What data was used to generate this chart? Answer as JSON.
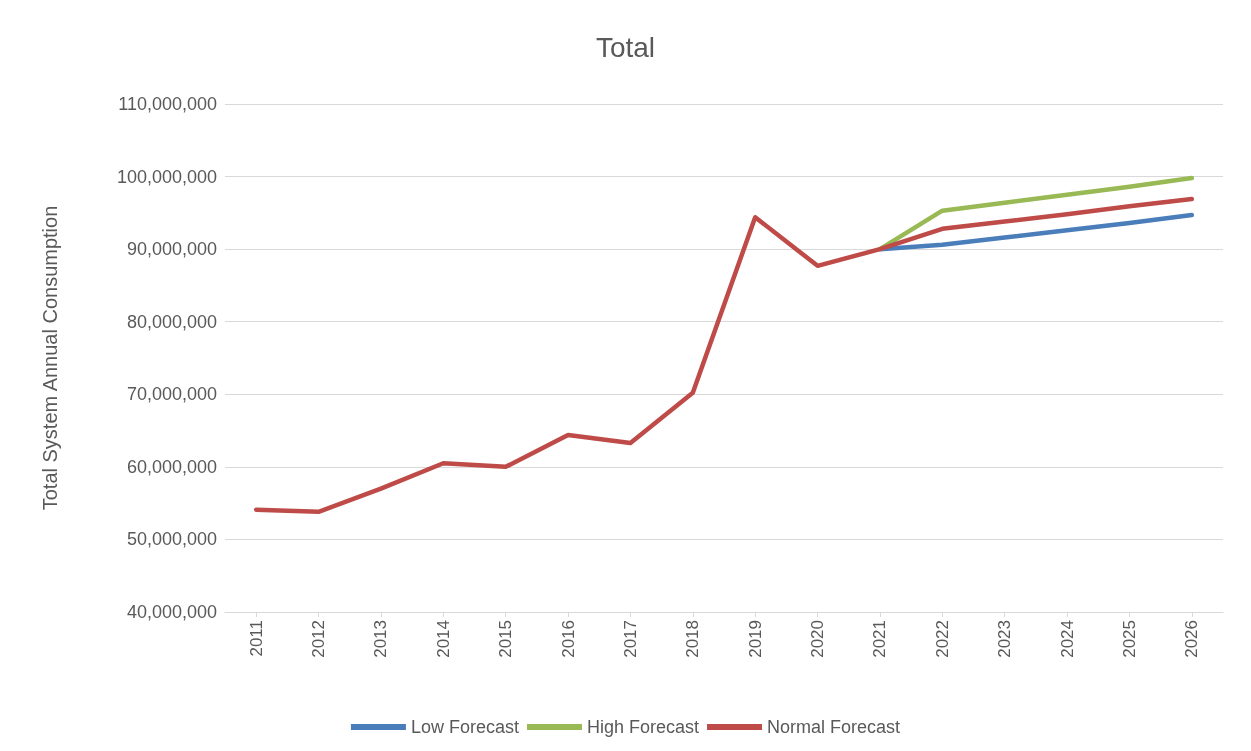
{
  "chart_data": {
    "type": "line",
    "title": "Total",
    "ylabel": "Total System Annual Consumption",
    "categories": [
      "2011",
      "2012",
      "2013",
      "2014",
      "2015",
      "2016",
      "2017",
      "2018",
      "2019",
      "2020",
      "2021",
      "2022",
      "2023",
      "2024",
      "2025",
      "2026"
    ],
    "series": [
      {
        "name": "Low Forecast",
        "color": "#4a7ebb",
        "values": [
          null,
          null,
          null,
          null,
          null,
          null,
          null,
          null,
          null,
          null,
          90000000,
          90600000,
          91600000,
          92600000,
          93600000,
          94700000
        ]
      },
      {
        "name": "High Forecast",
        "color": "#98b954",
        "values": [
          null,
          null,
          null,
          null,
          null,
          null,
          null,
          null,
          null,
          null,
          90000000,
          95300000,
          96400000,
          97500000,
          98600000,
          99800000
        ]
      },
      {
        "name": "Normal Forecast",
        "color": "#be4b48",
        "values": [
          54100000,
          53800000,
          57000000,
          60500000,
          60000000,
          64400000,
          63300000,
          70200000,
          94400000,
          87700000,
          90000000,
          92800000,
          93800000,
          94800000,
          95900000,
          96900000
        ]
      }
    ],
    "ylim": [
      40000000,
      110000000
    ],
    "yticks": [
      {
        "value": 40000000,
        "label": "40,000,000"
      },
      {
        "value": 50000000,
        "label": "50,000,000"
      },
      {
        "value": 60000000,
        "label": "60,000,000"
      },
      {
        "value": 70000000,
        "label": "70,000,000"
      },
      {
        "value": 80000000,
        "label": "80,000,000"
      },
      {
        "value": 90000000,
        "label": "90,000,000"
      },
      {
        "value": 100000000,
        "label": "100,000,000"
      },
      {
        "value": 110000000,
        "label": "110,000,000"
      }
    ],
    "grid": "y",
    "legend": "bottom",
    "marker": "none",
    "line_style": "solid"
  }
}
